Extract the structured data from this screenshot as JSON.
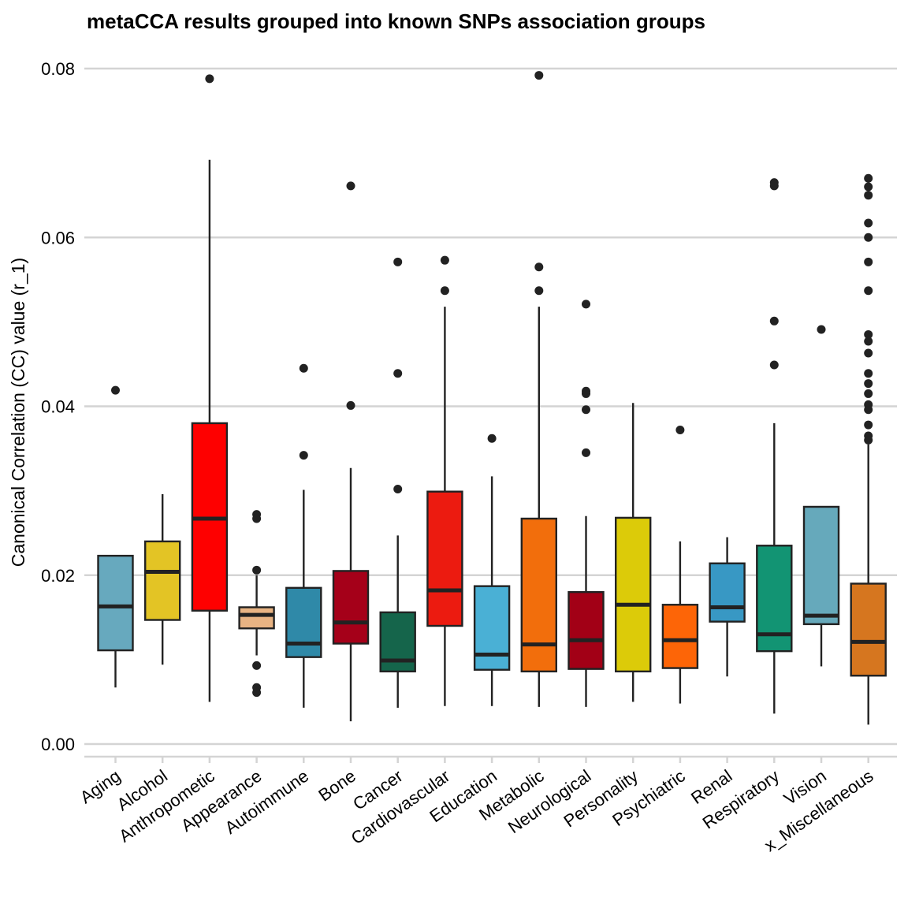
{
  "chart_data": {
    "type": "box",
    "title": "metaCCA results grouped into known SNPs association groups",
    "ylabel": "Canonical Correlation (CC) value (r_1)",
    "xlabel": "",
    "ylim": [
      0,
      0.08
    ],
    "yticks": [
      "0.00",
      "0.02",
      "0.04",
      "0.06",
      "0.08"
    ],
    "grid": "horizontal",
    "categories": [
      "Aging",
      "Alcohol",
      "Anthropometic",
      "Appearance",
      "Autoimmune",
      "Bone",
      "Cancer",
      "Cardiovascular",
      "Education",
      "Metabolic",
      "Neurological",
      "Personality",
      "Psychiatric",
      "Renal",
      "Respiratory",
      "Vision",
      "x_Miscellaneous"
    ],
    "colors": [
      "#67a9be",
      "#e3c425",
      "#fe0000",
      "#e8b383",
      "#2f89a8",
      "#a50019",
      "#15654b",
      "#ec1b10",
      "#4ab0d5",
      "#f26e0c",
      "#a20016",
      "#dccb09",
      "#fd6507",
      "#3898c4",
      "#129473",
      "#66a9bb",
      "#d6761f"
    ],
    "boxes": [
      {
        "whisker_low": 0.0067,
        "q1": 0.0111,
        "median": 0.0163,
        "q3": 0.0223,
        "whisker_high": 0.0223,
        "outliers": [
          0.0419
        ]
      },
      {
        "whisker_low": 0.0094,
        "q1": 0.0147,
        "median": 0.0204,
        "q3": 0.024,
        "whisker_high": 0.0296,
        "outliers": []
      },
      {
        "whisker_low": 0.005,
        "q1": 0.0158,
        "median": 0.0267,
        "q3": 0.038,
        "whisker_high": 0.0692,
        "outliers": [
          0.0788
        ]
      },
      {
        "whisker_low": 0.0105,
        "q1": 0.0137,
        "median": 0.0153,
        "q3": 0.0162,
        "whisker_high": 0.02,
        "outliers": [
          0.0272,
          0.0267,
          0.0206,
          0.0093,
          0.0067,
          0.0061
        ]
      },
      {
        "whisker_low": 0.0043,
        "q1": 0.0103,
        "median": 0.0119,
        "q3": 0.0185,
        "whisker_high": 0.0301,
        "outliers": [
          0.0445,
          0.0342
        ]
      },
      {
        "whisker_low": 0.0027,
        "q1": 0.0119,
        "median": 0.0144,
        "q3": 0.0205,
        "whisker_high": 0.0327,
        "outliers": [
          0.0661,
          0.0401
        ]
      },
      {
        "whisker_low": 0.0043,
        "q1": 0.0086,
        "median": 0.0099,
        "q3": 0.0156,
        "whisker_high": 0.0247,
        "outliers": [
          0.0571,
          0.0439,
          0.0302
        ]
      },
      {
        "whisker_low": 0.0045,
        "q1": 0.014,
        "median": 0.0182,
        "q3": 0.0299,
        "whisker_high": 0.0518,
        "outliers": [
          0.0573,
          0.0537
        ]
      },
      {
        "whisker_low": 0.0045,
        "q1": 0.0088,
        "median": 0.0106,
        "q3": 0.0187,
        "whisker_high": 0.0317,
        "outliers": [
          0.0362
        ]
      },
      {
        "whisker_low": 0.0044,
        "q1": 0.0086,
        "median": 0.0118,
        "q3": 0.0267,
        "whisker_high": 0.0518,
        "outliers": [
          0.0792,
          0.0565,
          0.0537
        ]
      },
      {
        "whisker_low": 0.0044,
        "q1": 0.0089,
        "median": 0.0123,
        "q3": 0.018,
        "whisker_high": 0.027,
        "outliers": [
          0.0521,
          0.0418,
          0.0415,
          0.0396,
          0.0345
        ]
      },
      {
        "whisker_low": 0.005,
        "q1": 0.0086,
        "median": 0.0165,
        "q3": 0.0268,
        "whisker_high": 0.0404,
        "outliers": []
      },
      {
        "whisker_low": 0.0048,
        "q1": 0.009,
        "median": 0.0123,
        "q3": 0.0165,
        "whisker_high": 0.024,
        "outliers": [
          0.0372
        ]
      },
      {
        "whisker_low": 0.008,
        "q1": 0.0145,
        "median": 0.0162,
        "q3": 0.0214,
        "whisker_high": 0.0245,
        "outliers": []
      },
      {
        "whisker_low": 0.0036,
        "q1": 0.011,
        "median": 0.013,
        "q3": 0.0235,
        "whisker_high": 0.038,
        "outliers": [
          0.0665,
          0.0661,
          0.0501,
          0.0449
        ]
      },
      {
        "whisker_low": 0.0092,
        "q1": 0.0142,
        "median": 0.0152,
        "q3": 0.0281,
        "whisker_high": 0.0281,
        "outliers": [
          0.0491
        ]
      },
      {
        "whisker_low": 0.0023,
        "q1": 0.0081,
        "median": 0.0121,
        "q3": 0.019,
        "whisker_high": 0.0355,
        "outliers": [
          0.067,
          0.066,
          0.065,
          0.0617,
          0.06,
          0.0571,
          0.0537,
          0.0485,
          0.0477,
          0.0463,
          0.0439,
          0.0427,
          0.0415,
          0.0402,
          0.0396,
          0.0378,
          0.0365,
          0.036
        ]
      }
    ]
  }
}
